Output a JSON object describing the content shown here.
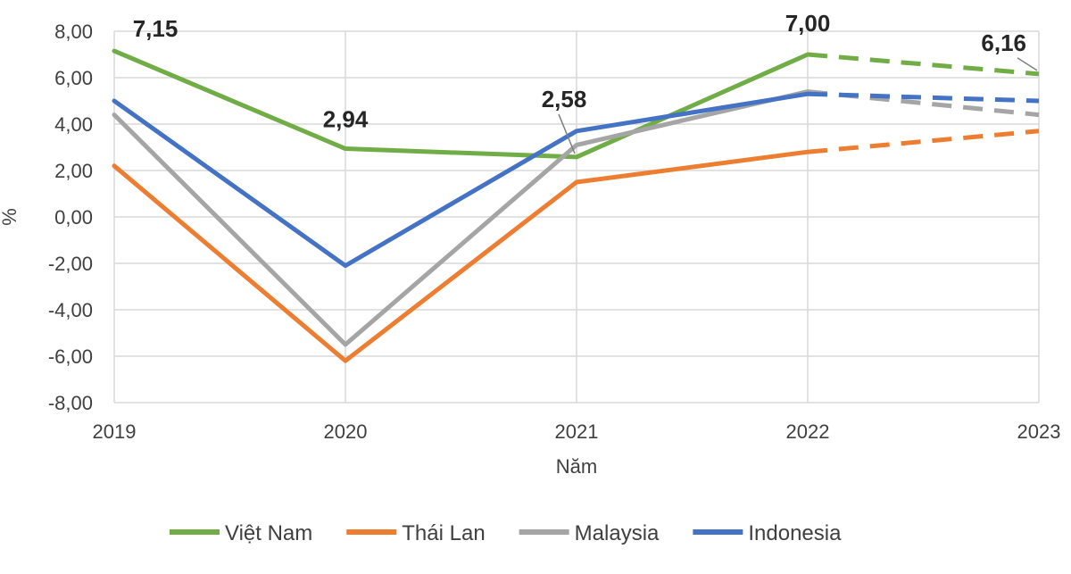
{
  "chart_data": {
    "type": "line",
    "title": "",
    "xlabel": "Năm",
    "ylabel": "%",
    "x": [
      "2019",
      "2020",
      "2021",
      "2022",
      "2023"
    ],
    "ylim": [
      -8,
      8
    ],
    "yticks": [
      "-8,00",
      "-6,00",
      "-4,00",
      "-2,00",
      "0,00",
      "2,00",
      "4,00",
      "6,00",
      "8,00"
    ],
    "grid": true,
    "legend_position": "bottom",
    "projection_start": "2022",
    "projection_style": "dashed",
    "series": [
      {
        "name": "Việt Nam",
        "color": "#70AD47",
        "values": [
          7.15,
          2.94,
          2.58,
          7.0,
          6.16
        ]
      },
      {
        "name": "Thái Lan",
        "color": "#ED7D31",
        "values": [
          2.2,
          -6.2,
          1.5,
          2.8,
          3.7
        ]
      },
      {
        "name": "Malaysia",
        "color": "#A5A5A5",
        "values": [
          4.4,
          -5.5,
          3.1,
          5.4,
          4.4
        ]
      },
      {
        "name": "Indonesia",
        "color": "#4472C4",
        "values": [
          5.0,
          -2.1,
          3.7,
          5.3,
          5.0
        ]
      }
    ],
    "data_labels": [
      {
        "series": "Việt Nam",
        "x": "2019",
        "text": "7,15"
      },
      {
        "series": "Việt Nam",
        "x": "2020",
        "text": "2,94"
      },
      {
        "series": "Việt Nam",
        "x": "2021",
        "text": "2,58"
      },
      {
        "series": "Việt Nam",
        "x": "2022",
        "text": "7,00"
      },
      {
        "series": "Việt Nam",
        "x": "2023",
        "text": "6,16"
      }
    ]
  }
}
